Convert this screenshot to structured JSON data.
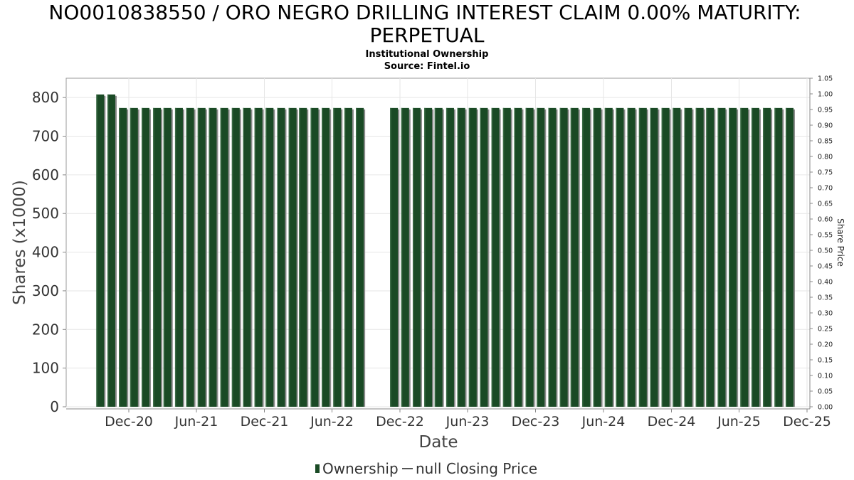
{
  "chart_data": {
    "type": "bar",
    "title_lines": [
      "NO0010838550 / ORO NEGRO DRILLING INTEREST CLAIM 0.00% MATURITY:",
      "PERPETUAL"
    ],
    "subtitle_lines": [
      "Institutional Ownership",
      "Source: Fintel.io"
    ],
    "xlabel": "Date",
    "ylabel": "Shares (x1000)",
    "y2label": "Share Price",
    "ylim": [
      0,
      850
    ],
    "y2lim": [
      0,
      1.05
    ],
    "grid": true,
    "legend_position": "bottom-center",
    "yticks": [
      "0",
      "100",
      "200",
      "300",
      "400",
      "500",
      "600",
      "700",
      "800"
    ],
    "y2ticks": [
      "0.00",
      "0.05",
      "0.10",
      "0.15",
      "0.20",
      "0.25",
      "0.30",
      "0.35",
      "0.40",
      "0.45",
      "0.50",
      "0.55",
      "0.60",
      "0.65",
      "0.70",
      "0.75",
      "0.80",
      "0.85",
      "0.90",
      "0.95",
      "1.00",
      "1.05"
    ],
    "xticks": [
      "Dec-20",
      "Jun-21",
      "Dec-21",
      "Jun-22",
      "Dec-22",
      "Jun-23",
      "Dec-23",
      "Jun-24",
      "Dec-24",
      "Jun-25",
      "Dec-25"
    ],
    "x": [
      "2020-09-15",
      "2020-10-15",
      "2020-11-15",
      "2020-12-15",
      "2021-01-15",
      "2021-02-15",
      "2021-03-15",
      "2021-04-15",
      "2021-05-15",
      "2021-06-15",
      "2021-07-15",
      "2021-08-15",
      "2021-09-15",
      "2021-10-15",
      "2021-11-15",
      "2021-12-15",
      "2022-01-15",
      "2022-02-15",
      "2022-03-15",
      "2022-04-15",
      "2022-05-15",
      "2022-06-15",
      "2022-07-15",
      "2022-08-15",
      "2022-11-15",
      "2022-12-15",
      "2023-01-15",
      "2023-02-15",
      "2023-03-15",
      "2023-04-15",
      "2023-05-15",
      "2023-06-15",
      "2023-07-15",
      "2023-08-15",
      "2023-09-15",
      "2023-10-15",
      "2023-11-15",
      "2023-12-15",
      "2024-01-15",
      "2024-02-15",
      "2024-03-15",
      "2024-04-15",
      "2024-05-15",
      "2024-06-15",
      "2024-07-15",
      "2024-08-15",
      "2024-09-15",
      "2024-10-15",
      "2024-11-15",
      "2024-12-15",
      "2025-01-15",
      "2025-02-15",
      "2025-03-15",
      "2025-04-15",
      "2025-05-15",
      "2025-06-15",
      "2025-07-15",
      "2025-08-15",
      "2025-09-15",
      "2025-10-15"
    ],
    "series": [
      {
        "name": "Ownership",
        "color": "#1a4a25",
        "values": [
          808,
          808,
          773,
          773,
          773,
          773,
          773,
          773,
          773,
          773,
          773,
          773,
          773,
          773,
          773,
          773,
          773,
          773,
          773,
          773,
          773,
          773,
          773,
          773,
          773,
          773,
          773,
          773,
          773,
          773,
          773,
          773,
          773,
          773,
          773,
          773,
          773,
          773,
          773,
          773,
          773,
          773,
          773,
          773,
          773,
          773,
          773,
          773,
          773,
          773,
          773,
          773,
          773,
          773,
          773,
          773,
          773,
          773,
          773,
          773
        ]
      }
    ],
    "legend": [
      {
        "label": "Ownership",
        "marker": "bar",
        "color": "#1a4a25"
      },
      {
        "label": "null Closing Price",
        "marker": "line",
        "color": "#555555"
      }
    ]
  }
}
